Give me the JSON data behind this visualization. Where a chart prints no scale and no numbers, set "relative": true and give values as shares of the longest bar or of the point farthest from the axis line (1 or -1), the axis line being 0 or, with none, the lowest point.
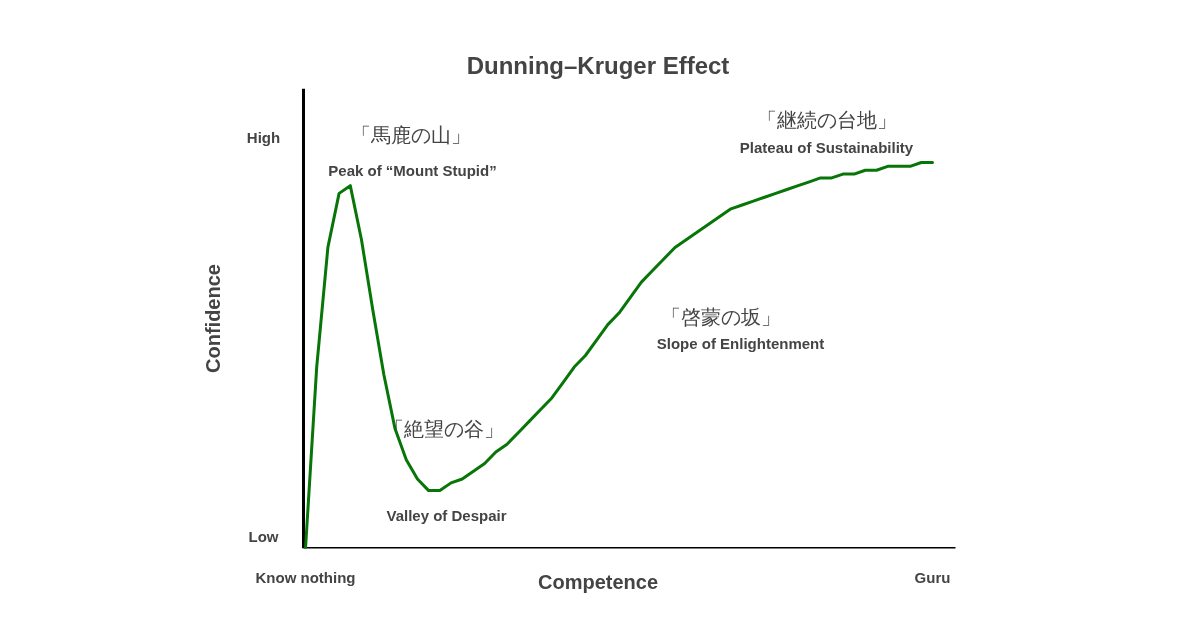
{
  "chart_data": {
    "type": "line",
    "title": "Dunning–Kruger Effect",
    "xlabel": "Competence",
    "ylabel": "Confidence",
    "relative": true,
    "categories": [
      "Know nothing",
      null,
      null,
      null,
      null,
      null,
      null,
      null,
      null,
      null,
      null,
      null,
      null,
      null,
      null,
      null,
      null,
      null,
      null,
      null,
      null,
      null,
      null,
      null,
      null,
      null,
      null,
      null,
      null,
      null,
      null,
      null,
      null,
      null,
      null,
      null,
      null,
      null,
      null,
      null,
      null,
      null,
      null,
      null,
      null,
      null,
      null,
      null,
      null,
      null,
      null,
      null,
      null,
      null,
      null,
      null,
      "Guru"
    ],
    "series": [
      {
        "color": "#087508",
        "values": [
          0,
          0.47,
          0.78,
          0.92,
          0.94,
          0.8,
          0.62,
          0.45,
          0.31,
          0.23,
          0.18,
          0.15,
          0.15,
          0.17,
          0.18,
          0.2,
          0.22,
          0.25,
          0.27,
          0.3,
          0.33,
          0.36,
          0.39,
          0.43,
          0.47,
          0.5,
          0.54,
          0.58,
          0.61,
          0.65,
          0.69,
          0.72,
          0.75,
          0.78,
          0.8,
          0.82,
          0.84,
          0.86,
          0.88,
          0.89,
          0.9,
          0.91,
          0.92,
          0.93,
          0.94,
          0.95,
          0.96,
          0.96,
          0.97,
          0.97,
          0.98,
          0.98,
          0.99,
          0.99,
          0.99,
          1.0,
          1
        ]
      }
    ],
    "annotations": [
      "「馬鹿の山」",
      "Peak of “Mount Stupid”",
      "「絶望の谷」",
      "Valley of Despair",
      "「啓蒙の坂」",
      "Slope of Enlightenment",
      "「継続の台地」",
      "Plateau of Sustainability",
      "High",
      "Low"
    ],
    "grid": false,
    "marker": "none",
    "line_style": "solid"
  }
}
